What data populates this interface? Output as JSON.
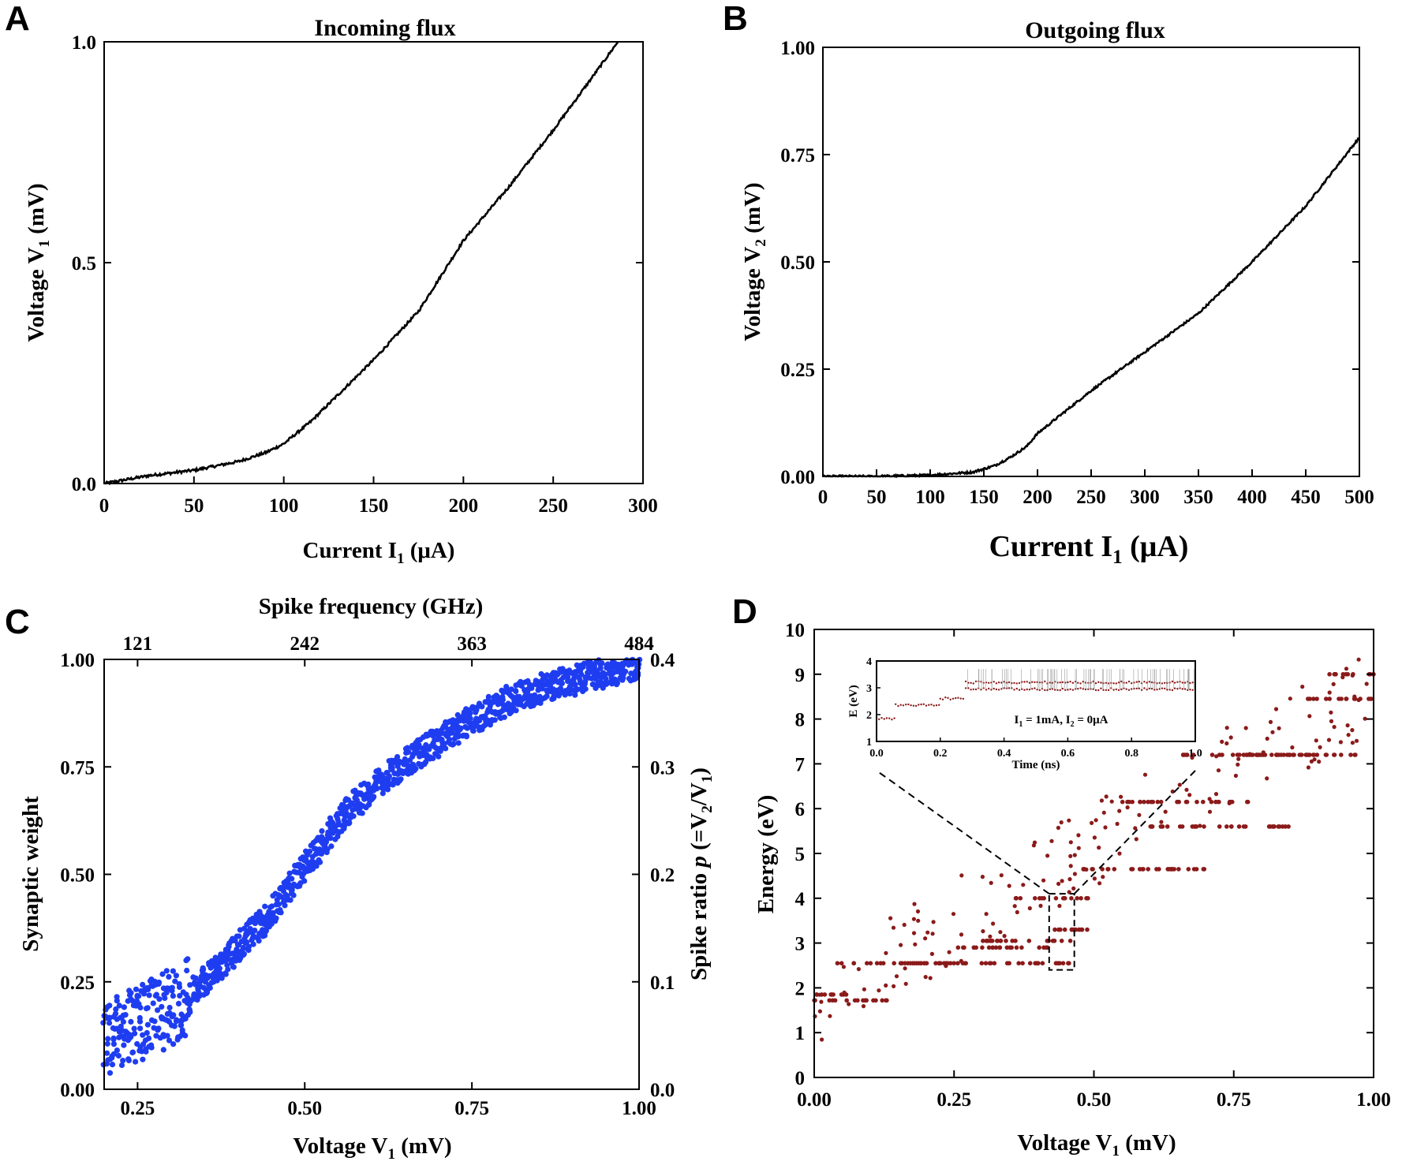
{
  "figure": {
    "panels": [
      "A",
      "B",
      "C",
      "D"
    ]
  },
  "chart_data": [
    {
      "id": "A",
      "type": "line",
      "title": "Incoming flux",
      "xlabel": "Current I",
      "xlabel_sub": "1",
      "xlabel_unit": " (μA)",
      "ylabel": "Voltage V",
      "ylabel_sub": "1",
      "ylabel_unit": " (mV)",
      "xlim": [
        0,
        300
      ],
      "ylim": [
        0,
        1
      ],
      "xticks": [
        0,
        50,
        100,
        150,
        200,
        250,
        300
      ],
      "xtick_labels": [
        "0",
        "50",
        "100",
        "150",
        "200",
        "250",
        "300"
      ],
      "yticks": [
        0,
        0.5,
        1
      ],
      "ytick_labels": [
        "0.0",
        "0.5",
        "1.0"
      ],
      "color": "#000000",
      "series": [
        {
          "name": "V1 vs I1",
          "x": [
            0,
            25,
            50,
            75,
            90,
            100,
            115,
            130,
            150,
            175,
            200,
            225,
            250,
            270,
            286
          ],
          "y": [
            0.0,
            0.018,
            0.03,
            0.05,
            0.07,
            0.09,
            0.14,
            0.2,
            0.28,
            0.39,
            0.55,
            0.67,
            0.8,
            0.91,
            1.0
          ]
        }
      ]
    },
    {
      "id": "B",
      "type": "line",
      "title": "Outgoing flux",
      "xlabel": "Current I",
      "xlabel_sub": "1",
      "xlabel_unit": " (μA)",
      "ylabel": "Voltage V",
      "ylabel_sub": "2",
      "ylabel_unit": " (mV)",
      "xlim": [
        0,
        500
      ],
      "ylim": [
        0,
        1
      ],
      "xticks": [
        0,
        50,
        100,
        150,
        200,
        250,
        300,
        350,
        400,
        450,
        500
      ],
      "xtick_labels": [
        "0",
        "50",
        "100",
        "150",
        "200",
        "250",
        "300",
        "350",
        "400",
        "450",
        "500"
      ],
      "yticks": [
        0,
        0.25,
        0.5,
        0.75,
        1
      ],
      "ytick_labels": [
        "0.00",
        "0.25",
        "0.50",
        "0.75",
        "1.00"
      ],
      "color": "#000000",
      "series": [
        {
          "name": "V2 vs I1",
          "x": [
            0,
            50,
            100,
            140,
            160,
            175,
            190,
            200,
            250,
            300,
            350,
            400,
            450,
            500
          ],
          "y": [
            0.0,
            0.0,
            0.003,
            0.01,
            0.025,
            0.045,
            0.07,
            0.1,
            0.2,
            0.29,
            0.38,
            0.5,
            0.63,
            0.79
          ]
        }
      ]
    },
    {
      "id": "C",
      "type": "scatter",
      "title": "",
      "top_axis_label": "Spike frequency (GHz)",
      "top_ticks": [
        121,
        242,
        363,
        484
      ],
      "top_tick_labels": [
        "121",
        "242",
        "363",
        "484"
      ],
      "xlabel": "Voltage V",
      "xlabel_sub": "1",
      "xlabel_unit": " (mV)",
      "ylabel": "Synaptic weight",
      "right_label_prefix": "Spike ratio ",
      "right_label_p": "p",
      "right_label_mid": " (=V",
      "right_label_sub2": "2",
      "right_label_slash": "/V",
      "right_label_sub1": "1",
      "right_label_end": ")",
      "xlim": [
        0.2,
        1.0
      ],
      "ylim": [
        0,
        1
      ],
      "right_ylim": [
        0,
        0.4
      ],
      "xticks": [
        0.25,
        0.5,
        0.75,
        1.0
      ],
      "xtick_labels": [
        "0.25",
        "0.50",
        "0.75",
        "1.00"
      ],
      "yticks": [
        0,
        0.25,
        0.5,
        0.75,
        1
      ],
      "ytick_labels": [
        "0.00",
        "0.25",
        "0.50",
        "0.75",
        "1.00"
      ],
      "right_yticks": [
        0,
        0.1,
        0.2,
        0.3,
        0.4
      ],
      "right_ytick_labels": [
        "0.0",
        "0.1",
        "0.2",
        "0.3",
        "0.4"
      ],
      "color": "#1f3df0",
      "trend": {
        "x": [
          0.2,
          0.25,
          0.3,
          0.35,
          0.4,
          0.45,
          0.5,
          0.55,
          0.6,
          0.65,
          0.7,
          0.75,
          0.8,
          0.85,
          0.9,
          0.95,
          1.0
        ],
        "y": [
          0.12,
          0.15,
          0.19,
          0.25,
          0.33,
          0.41,
          0.52,
          0.62,
          0.7,
          0.76,
          0.81,
          0.86,
          0.9,
          0.93,
          0.95,
          0.97,
          0.99
        ]
      },
      "points_per_trend": 420,
      "spread": 0.035,
      "low_spread_until": 0.33,
      "low_spread": 0.09
    },
    {
      "id": "D",
      "type": "scatter",
      "title": "",
      "xlabel": "Voltage V",
      "xlabel_sub": "1",
      "xlabel_unit": " (mV)",
      "ylabel": "Energy (eV)",
      "xlim": [
        0,
        1
      ],
      "ylim": [
        0,
        10
      ],
      "xticks": [
        0,
        0.25,
        0.5,
        0.75,
        1.0
      ],
      "xtick_labels": [
        "0.00",
        "0.25",
        "0.50",
        "0.75",
        "1.00"
      ],
      "yticks": [
        0,
        1,
        2,
        3,
        4,
        5,
        6,
        7,
        8,
        9,
        10
      ],
      "ytick_labels": [
        "0",
        "1",
        "2",
        "3",
        "4",
        "5",
        "6",
        "7",
        "8",
        "9",
        "10"
      ],
      "color": "#8b1a1a",
      "levels": [
        {
          "xmin": 0.0,
          "xmax": 0.13,
          "y": 1.72
        },
        {
          "xmin": 0.03,
          "xmax": 0.24,
          "y": 2.55
        },
        {
          "xmin": 0.0,
          "xmax": 0.06,
          "y": 1.85
        },
        {
          "xmin": 0.2,
          "xmax": 0.46,
          "y": 2.55
        },
        {
          "xmin": 0.24,
          "xmax": 0.42,
          "y": 2.9
        },
        {
          "xmin": 0.3,
          "xmax": 0.46,
          "y": 3.05
        },
        {
          "xmin": 0.36,
          "xmax": 0.5,
          "y": 4.0
        },
        {
          "xmin": 0.42,
          "xmax": 0.5,
          "y": 3.3
        },
        {
          "xmin": 0.48,
          "xmax": 0.72,
          "y": 4.65
        },
        {
          "xmin": 0.55,
          "xmax": 0.78,
          "y": 6.15
        },
        {
          "xmin": 0.6,
          "xmax": 0.85,
          "y": 5.6
        },
        {
          "xmin": 0.65,
          "xmax": 0.9,
          "y": 7.2
        },
        {
          "xmin": 0.78,
          "xmax": 0.97,
          "y": 7.2
        },
        {
          "xmin": 0.88,
          "xmax": 1.0,
          "y": 8.45
        },
        {
          "xmin": 0.92,
          "xmax": 1.0,
          "y": 9.0
        }
      ],
      "zoom_box": {
        "x": [
          0.42,
          0.465
        ],
        "y": [
          2.4,
          4.1
        ]
      },
      "inset": {
        "annotation": "I",
        "annotation_sub1": "1",
        "annotation_mid": " = 1mA, I",
        "annotation_sub2": "2",
        "annotation_end": " = 0μA",
        "xlabel": "Time (ns)",
        "ylabel": "E (eV)",
        "xlim": [
          0,
          1
        ],
        "ylim": [
          1,
          4
        ],
        "xticks": [
          0,
          0.2,
          0.4,
          0.6,
          0.8,
          1.0
        ],
        "xtick_labels": [
          "0.0",
          "0.2",
          "0.4",
          "0.6",
          "0.8",
          "1.0"
        ],
        "yticks": [
          1,
          2,
          3,
          4
        ],
        "ytick_labels": [
          "1",
          "2",
          "3",
          "4"
        ],
        "steps": [
          {
            "t0": 0.0,
            "t1": 0.06,
            "E": 1.85
          },
          {
            "t0": 0.06,
            "t1": 0.2,
            "E": 2.35
          },
          {
            "t0": 0.2,
            "t1": 0.28,
            "E": 2.6
          },
          {
            "t0": 0.28,
            "t1": 1.0,
            "E": 2.95
          },
          {
            "t0": 0.28,
            "t1": 1.0,
            "E": 3.2
          }
        ]
      }
    }
  ]
}
